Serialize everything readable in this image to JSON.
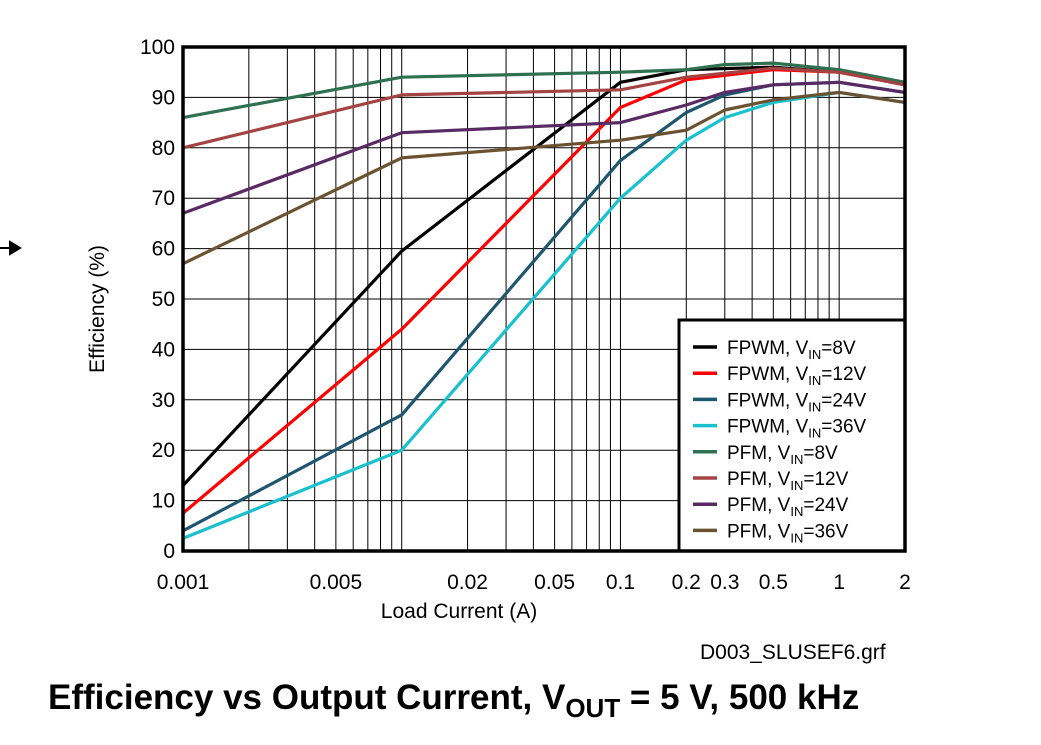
{
  "figure": {
    "file_label": "D003_SLUSEF6.grf",
    "caption": {
      "prefix": "Efficiency vs Output Current, V",
      "sub": "OUT",
      "suffix": " = 5 V, 500 kHz"
    }
  },
  "chart_data": {
    "type": "line",
    "xlabel": "Load Current (A)",
    "ylabel": "Efficiency (%)",
    "x_scale": "log",
    "xlim": [
      0.001,
      2
    ],
    "ylim": [
      0,
      100
    ],
    "x_ticks": [
      0.001,
      0.005,
      0.02,
      0.05,
      0.1,
      0.2,
      0.3,
      0.5,
      1,
      2
    ],
    "x_tick_labels": [
      "0.001",
      "0.005",
      "0.02",
      "0.05",
      "0.1",
      "0.2",
      "0.3",
      "0.5",
      "1",
      "2"
    ],
    "y_ticks": [
      0,
      10,
      20,
      30,
      40,
      50,
      60,
      70,
      80,
      90,
      100
    ],
    "y_tick_labels": [
      "0",
      "10",
      "20",
      "30",
      "40",
      "50",
      "60",
      "70",
      "80",
      "90",
      "100"
    ],
    "grid": true,
    "legend_position": "bottom-right",
    "series": [
      {
        "name_prefix": "FPWM, V",
        "name_sub": "IN",
        "name_suffix": "=8V",
        "color": "#000000",
        "points": [
          [
            0.001,
            13
          ],
          [
            0.01,
            59.5
          ],
          [
            0.1,
            93
          ],
          [
            0.2,
            95.5
          ],
          [
            0.5,
            96
          ],
          [
            1,
            95
          ],
          [
            2,
            92.5
          ]
        ]
      },
      {
        "name_prefix": "FPWM, V",
        "name_sub": "IN",
        "name_suffix": "=12V",
        "color": "#ff0000",
        "points": [
          [
            0.001,
            7.5
          ],
          [
            0.01,
            44
          ],
          [
            0.1,
            88
          ],
          [
            0.2,
            93.5
          ],
          [
            0.5,
            95.5
          ],
          [
            1,
            95
          ],
          [
            2,
            92.5
          ]
        ]
      },
      {
        "name_prefix": "FPWM, V",
        "name_sub": "IN",
        "name_suffix": "=24V",
        "color": "#1e5670",
        "points": [
          [
            0.001,
            4
          ],
          [
            0.01,
            27
          ],
          [
            0.1,
            77.5
          ],
          [
            0.2,
            87
          ],
          [
            0.3,
            90.5
          ],
          [
            0.5,
            92.5
          ],
          [
            1,
            93
          ],
          [
            2,
            91
          ]
        ]
      },
      {
        "name_prefix": "FPWM, V",
        "name_sub": "IN",
        "name_suffix": "=36V",
        "color": "#19c0d0",
        "points": [
          [
            0.001,
            2.5
          ],
          [
            0.01,
            20
          ],
          [
            0.1,
            70
          ],
          [
            0.2,
            81.5
          ],
          [
            0.3,
            86
          ],
          [
            0.5,
            89
          ],
          [
            1,
            91
          ],
          [
            2,
            89
          ]
        ]
      },
      {
        "name_prefix": "PFM, V",
        "name_sub": "IN",
        "name_suffix": "=8V",
        "color": "#2e7050",
        "points": [
          [
            0.001,
            86
          ],
          [
            0.01,
            94
          ],
          [
            0.1,
            95
          ],
          [
            0.2,
            95.5
          ],
          [
            0.3,
            96.5
          ],
          [
            0.5,
            96.8
          ],
          [
            1,
            95.5
          ],
          [
            2,
            93
          ]
        ]
      },
      {
        "name_prefix": "PFM, V",
        "name_sub": "IN",
        "name_suffix": "=12V",
        "color": "#a34443",
        "points": [
          [
            0.001,
            80
          ],
          [
            0.01,
            90.5
          ],
          [
            0.1,
            91.5
          ],
          [
            0.2,
            94
          ],
          [
            0.5,
            95.8
          ],
          [
            1,
            95
          ],
          [
            2,
            92.5
          ]
        ]
      },
      {
        "name_prefix": "PFM, V",
        "name_sub": "IN",
        "name_suffix": "=24V",
        "color": "#5a2a64",
        "points": [
          [
            0.001,
            67
          ],
          [
            0.01,
            83
          ],
          [
            0.1,
            85
          ],
          [
            0.2,
            88.5
          ],
          [
            0.3,
            91
          ],
          [
            0.5,
            92.5
          ],
          [
            1,
            93
          ],
          [
            2,
            91
          ]
        ]
      },
      {
        "name_prefix": "PFM, V",
        "name_sub": "IN",
        "name_suffix": "=36V",
        "color": "#6b5230",
        "points": [
          [
            0.001,
            57
          ],
          [
            0.01,
            78
          ],
          [
            0.1,
            81.5
          ],
          [
            0.2,
            83.5
          ],
          [
            0.3,
            87.5
          ],
          [
            0.5,
            89.5
          ],
          [
            1,
            91
          ],
          [
            2,
            89
          ]
        ]
      }
    ]
  }
}
